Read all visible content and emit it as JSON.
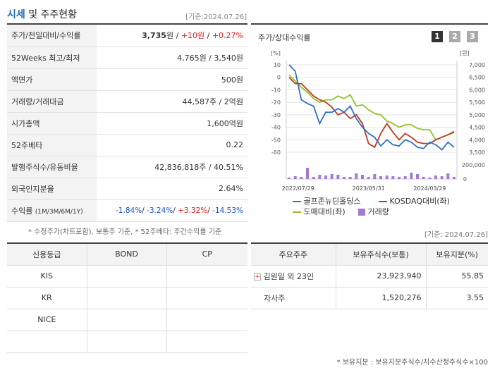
{
  "header": {
    "title_a": "시세",
    "title_b": " 및 주주현황",
    "base_date": "[기준:2024.07.26]"
  },
  "info_rows": [
    {
      "key": "주가/전일대비/수익률"
    },
    {
      "key": "52Weeks 최고/최저",
      "value": "4,765원 / 3,540원"
    },
    {
      "key": "액면가",
      "value": "500원"
    },
    {
      "key": "거래량/거래대금",
      "value": "44,587주 / 2억원"
    },
    {
      "key": "시가총액",
      "value": "1,600억원"
    },
    {
      "key": "52주베타",
      "value": "0.22"
    },
    {
      "key": "발행주식수/유동비율",
      "value": "42,836,818주 / 40.51%"
    },
    {
      "key": "외국인지분율",
      "value": "2.64%"
    },
    {
      "key": "수익률",
      "key_sub": "(1M/3M/6M/1Y)"
    }
  ],
  "price": {
    "value": "3,735",
    "unit": "원",
    "sep1": " / ",
    "change": "+10원",
    "sep2": " / ",
    "rate": "+0.27%"
  },
  "returns": {
    "r1m": "-1.84%",
    "r3m": "-3.24%",
    "r6m": "+3.32%",
    "r1y": "-14.53%",
    "sep": "/ "
  },
  "note1": "* 수정주가(차트포함), 보통주 기준, * 52주베타: 주간수익률 기준",
  "chart": {
    "title": "주가/상대수익률",
    "pages": [
      "1",
      "2",
      "3"
    ],
    "left_unit": "[%]",
    "right_unit": "[원]",
    "left_ticks": [
      "10",
      "0",
      "-10",
      "-20",
      "-30",
      "-40",
      "-50",
      "-60"
    ],
    "right_ticks": [
      "7,000",
      "6,500",
      "6,000",
      "5,500",
      "5,000",
      "4,500",
      "4,000",
      "3,500"
    ],
    "vol_tick": "200,000",
    "vol_zero": "0",
    "x_labels": [
      "2022/07/29",
      "2023/05/31",
      "2024/03/29"
    ],
    "legend": [
      "골프존뉴딘홀딩스",
      "KOSDAQ대비(좌)",
      "도매대비(좌)",
      "거래량"
    ],
    "colors": {
      "stock": "#2f6fc7",
      "kosdaq": "#c0391b",
      "wholesale": "#92c22a",
      "volume": "#a57ad6"
    }
  },
  "chart_data": {
    "type": "line",
    "x_labels": [
      "2022/07/29",
      "2023/05/31",
      "2024/03/29"
    ],
    "series": [
      {
        "name": "골프존뉴딘홀딩스",
        "values": [
          10,
          5,
          -18,
          -21,
          -23,
          -37,
          -28,
          -28,
          -25,
          -28,
          -23,
          -33,
          -40,
          -45,
          -48,
          -55,
          -50,
          -54,
          -55,
          -50,
          -52,
          -56,
          -57,
          -52,
          -54,
          -58,
          -52,
          -56
        ]
      },
      {
        "name": "KOSDAQ대비(좌)",
        "values": [
          0,
          -5,
          -5,
          -10,
          -15,
          -18,
          -20,
          -24,
          -30,
          -28,
          -33,
          -30,
          -37,
          -53,
          -56,
          -45,
          -37,
          -44,
          -50,
          -45,
          -48,
          -52,
          -53,
          -53,
          -50,
          -48,
          -46,
          -44
        ]
      },
      {
        "name": "도매대비(좌)",
        "values": [
          2,
          -3,
          -8,
          -12,
          -17,
          -20,
          -18,
          -18,
          -15,
          -17,
          -14,
          -23,
          -22,
          -26,
          -29,
          -30,
          -35,
          -37,
          -40,
          -38,
          -38,
          -41,
          -42,
          -42,
          -50,
          -48,
          -46,
          -43
        ]
      },
      {
        "name": "거래량",
        "values": [
          20000,
          40000,
          30000,
          160000,
          30000,
          60000,
          50000,
          70000,
          60000,
          30000,
          30000,
          80000,
          60000,
          30000,
          70000,
          40000,
          50000,
          40000,
          30000,
          40000,
          90000,
          70000,
          30000,
          20000,
          50000,
          40000,
          80000,
          30000
        ]
      }
    ],
    "ylim_left": [
      -60,
      10
    ],
    "ylim_right": [
      3500,
      7000
    ],
    "grid": true
  },
  "base_date2": "[기준: 2024.07.26]",
  "credit": {
    "headers": [
      "신용등급",
      "BOND",
      "CP"
    ],
    "rows": [
      [
        "KIS",
        "",
        ""
      ],
      [
        "KR",
        "",
        ""
      ],
      [
        "NICE",
        "",
        ""
      ],
      [
        "",
        "",
        ""
      ]
    ]
  },
  "holders": {
    "headers": [
      "주요주주",
      "보유주식수(보통)",
      "보유지분(%)"
    ],
    "rows": [
      {
        "name": "김원일 외 23인",
        "shares": "23,923,940",
        "pct": "55.85",
        "expand": true
      },
      {
        "name": "자사주",
        "shares": "1,520,276",
        "pct": "3.55",
        "expand": false
      }
    ]
  },
  "footnote": "* 보유지분 : 보유지분주식수/지수산정주식수×100"
}
